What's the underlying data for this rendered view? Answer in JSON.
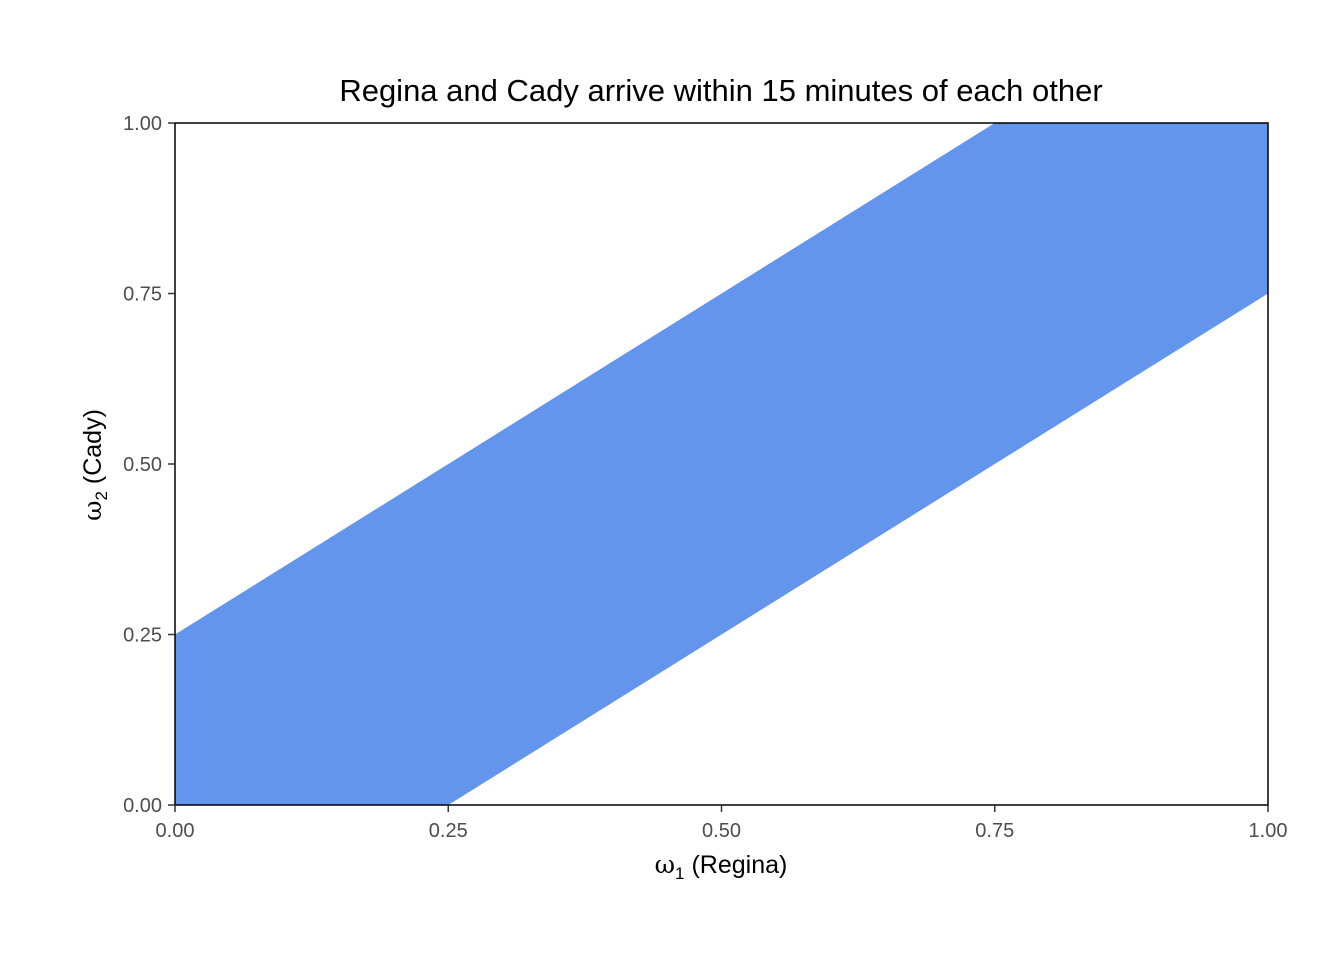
{
  "chart_data": {
    "type": "area",
    "title": "Regina and Cady arrive within 15 minutes of each other",
    "xlabel": {
      "symbol": "ω",
      "subscript": "1",
      "text": " (Regina)"
    },
    "ylabel": {
      "symbol": "ω",
      "subscript": "2",
      "text": " (Cady)"
    },
    "xlim": [
      0,
      1
    ],
    "ylim": [
      0,
      1
    ],
    "x_ticks": [
      {
        "value": 0,
        "label": "0.00"
      },
      {
        "value": 0.25,
        "label": "0.25"
      },
      {
        "value": 0.5,
        "label": "0.50"
      },
      {
        "value": 0.75,
        "label": "0.75"
      },
      {
        "value": 1,
        "label": "1.00"
      }
    ],
    "y_ticks": [
      {
        "value": 0,
        "label": "0.00"
      },
      {
        "value": 0.25,
        "label": "0.25"
      },
      {
        "value": 0.5,
        "label": "0.50"
      },
      {
        "value": 0.75,
        "label": "0.75"
      },
      {
        "value": 1,
        "label": "1.00"
      }
    ],
    "region": {
      "fill_color": "#6495ed",
      "vertices": [
        [
          0,
          0
        ],
        [
          0.25,
          0
        ],
        [
          1,
          0.75
        ],
        [
          1,
          1
        ],
        [
          0.75,
          1
        ],
        [
          0,
          0.25
        ]
      ]
    },
    "grid": false,
    "legend": "none"
  }
}
